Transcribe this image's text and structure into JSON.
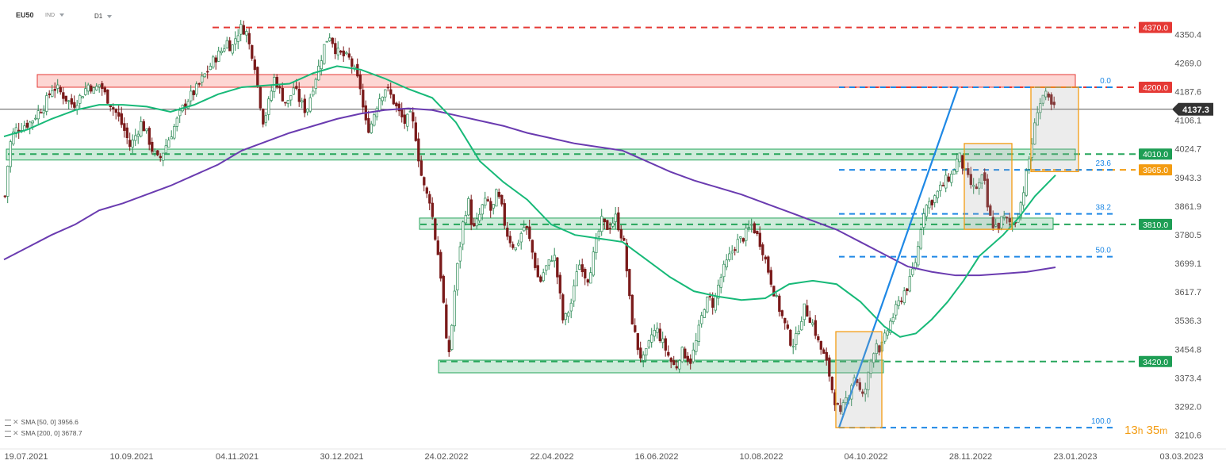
{
  "header": {
    "symbol": "EU50",
    "type": "IND",
    "interval": "D1"
  },
  "legend": [
    {
      "label": "SMA [50, 0]",
      "value": "3956.6"
    },
    {
      "label": "SMA [200, 0]",
      "value": "3678.7"
    }
  ],
  "timer": {
    "hours": "13",
    "h_unit": "h",
    "minutes": "35",
    "m_unit": "m"
  },
  "colors": {
    "up": "#2e8b57",
    "down": "#7a1a1a",
    "sma50": "#17b978",
    "sma200": "#6a3bb0",
    "resistance": "#e53935",
    "support": "#26a65b",
    "fib": "#1e88e5",
    "orange": "#f39c12"
  },
  "chart_data": {
    "type": "candlestick",
    "y_range": [
      3185,
      4430
    ],
    "y_ticks": [
      "4350.4",
      "4269.0",
      "4187.6",
      "4106.1",
      "4024.7",
      "3943.3",
      "3861.9",
      "3780.5",
      "3699.1",
      "3617.7",
      "3536.3",
      "3454.8",
      "3373.4",
      "3292.0",
      "3210.6"
    ],
    "x_labels": [
      "19.07.2021",
      "10.09.2021",
      "04.11.2021",
      "30.12.2021",
      "24.02.2022",
      "22.04.2022",
      "16.06.2022",
      "10.08.2022",
      "04.10.2022",
      "28.11.2022",
      "23.01.2023",
      "03.03.2023"
    ],
    "last_price": "4137.3",
    "levels": [
      {
        "label": "4370.0",
        "value": 4370.0,
        "kind": "resistance"
      },
      {
        "label": "4200.0",
        "value": 4200.0,
        "kind": "resistance"
      },
      {
        "label": "4010.0",
        "value": 4010.0,
        "kind": "support"
      },
      {
        "label": "3965.0",
        "value": 3965.0,
        "kind": "orange"
      },
      {
        "label": "3810.0",
        "value": 3810.0,
        "kind": "support"
      },
      {
        "label": "3420.0",
        "value": 3420.0,
        "kind": "support"
      }
    ],
    "fib_levels": [
      {
        "label": "0.0",
        "value": 4200
      },
      {
        "label": "23.6",
        "value": 3965
      },
      {
        "label": "38.2",
        "value": 3840
      },
      {
        "label": "50.0",
        "value": 3718
      },
      {
        "label": "100.0",
        "value": 3232
      }
    ],
    "zones": [
      {
        "from": 4200,
        "to": 4236,
        "kind": "resistance"
      },
      {
        "from": 3993,
        "to": 4024,
        "kind": "support"
      },
      {
        "from": 3796,
        "to": 3828,
        "kind": "support"
      },
      {
        "from": 3388,
        "to": 3424,
        "kind": "support"
      }
    ],
    "close_path": [
      [
        0,
        3890
      ],
      [
        4,
        3990
      ],
      [
        8,
        4060
      ],
      [
        14,
        4080
      ],
      [
        22,
        4090
      ],
      [
        32,
        4100
      ],
      [
        42,
        4130
      ],
      [
        50,
        4150
      ],
      [
        60,
        4200
      ],
      [
        66,
        4195
      ],
      [
        72,
        4180
      ],
      [
        80,
        4160
      ],
      [
        86,
        4150
      ],
      [
        94,
        4170
      ],
      [
        100,
        4190
      ],
      [
        106,
        4210
      ],
      [
        112,
        4190
      ],
      [
        120,
        4210
      ],
      [
        126,
        4180
      ],
      [
        134,
        4150
      ],
      [
        142,
        4120
      ],
      [
        150,
        4080
      ],
      [
        158,
        4030
      ],
      [
        166,
        4070
      ],
      [
        172,
        4100
      ],
      [
        180,
        4060
      ],
      [
        186,
        4020
      ],
      [
        194,
        3990
      ],
      [
        200,
        4020
      ],
      [
        206,
        4050
      ],
      [
        212,
        4080
      ],
      [
        218,
        4110
      ],
      [
        224,
        4140
      ],
      [
        232,
        4170
      ],
      [
        240,
        4190
      ],
      [
        248,
        4220
      ],
      [
        256,
        4250
      ],
      [
        264,
        4280
      ],
      [
        272,
        4300
      ],
      [
        280,
        4330
      ],
      [
        286,
        4310
      ],
      [
        292,
        4350
      ],
      [
        298,
        4370
      ],
      [
        304,
        4360
      ],
      [
        308,
        4320
      ],
      [
        314,
        4280
      ],
      [
        320,
        4180
      ],
      [
        326,
        4100
      ],
      [
        332,
        4150
      ],
      [
        340,
        4230
      ],
      [
        348,
        4180
      ],
      [
        356,
        4150
      ],
      [
        364,
        4200
      ],
      [
        372,
        4160
      ],
      [
        380,
        4130
      ],
      [
        388,
        4200
      ],
      [
        396,
        4260
      ],
      [
        404,
        4330
      ],
      [
        410,
        4350
      ],
      [
        418,
        4300
      ],
      [
        426,
        4290
      ],
      [
        434,
        4280
      ],
      [
        440,
        4250
      ],
      [
        448,
        4200
      ],
      [
        454,
        4100
      ],
      [
        460,
        4080
      ],
      [
        466,
        4130
      ],
      [
        472,
        4170
      ],
      [
        480,
        4200
      ],
      [
        488,
        4170
      ],
      [
        496,
        4130
      ],
      [
        504,
        4100
      ],
      [
        512,
        4120
      ],
      [
        518,
        4060
      ],
      [
        524,
        3960
      ],
      [
        530,
        3900
      ],
      [
        536,
        3880
      ],
      [
        542,
        3780
      ],
      [
        548,
        3700
      ],
      [
        554,
        3560
      ],
      [
        558,
        3420
      ],
      [
        562,
        3480
      ],
      [
        566,
        3600
      ],
      [
        572,
        3720
      ],
      [
        578,
        3820
      ],
      [
        584,
        3880
      ],
      [
        590,
        3790
      ],
      [
        596,
        3820
      ],
      [
        602,
        3860
      ],
      [
        608,
        3880
      ],
      [
        614,
        3840
      ],
      [
        620,
        3900
      ],
      [
        626,
        3860
      ],
      [
        632,
        3790
      ],
      [
        638,
        3760
      ],
      [
        644,
        3740
      ],
      [
        650,
        3780
      ],
      [
        656,
        3810
      ],
      [
        662,
        3760
      ],
      [
        668,
        3700
      ],
      [
        674,
        3640
      ],
      [
        680,
        3680
      ],
      [
        686,
        3700
      ],
      [
        692,
        3730
      ],
      [
        698,
        3640
      ],
      [
        704,
        3530
      ],
      [
        710,
        3560
      ],
      [
        716,
        3600
      ],
      [
        722,
        3700
      ],
      [
        728,
        3690
      ],
      [
        734,
        3650
      ],
      [
        740,
        3700
      ],
      [
        746,
        3760
      ],
      [
        752,
        3820
      ],
      [
        758,
        3800
      ],
      [
        764,
        3810
      ],
      [
        770,
        3830
      ],
      [
        776,
        3790
      ],
      [
        782,
        3740
      ],
      [
        786,
        3620
      ],
      [
        792,
        3520
      ],
      [
        798,
        3460
      ],
      [
        804,
        3420
      ],
      [
        810,
        3450
      ],
      [
        816,
        3500
      ],
      [
        822,
        3510
      ],
      [
        828,
        3480
      ],
      [
        834,
        3450
      ],
      [
        840,
        3420
      ],
      [
        846,
        3400
      ],
      [
        852,
        3450
      ],
      [
        858,
        3440
      ],
      [
        864,
        3420
      ],
      [
        870,
        3460
      ],
      [
        876,
        3520
      ],
      [
        882,
        3580
      ],
      [
        888,
        3600
      ],
      [
        894,
        3580
      ],
      [
        900,
        3640
      ],
      [
        906,
        3680
      ],
      [
        912,
        3710
      ],
      [
        918,
        3740
      ],
      [
        924,
        3760
      ],
      [
        930,
        3770
      ],
      [
        936,
        3790
      ],
      [
        942,
        3810
      ],
      [
        948,
        3780
      ],
      [
        954,
        3750
      ],
      [
        960,
        3700
      ],
      [
        966,
        3650
      ],
      [
        972,
        3600
      ],
      [
        978,
        3560
      ],
      [
        984,
        3520
      ],
      [
        990,
        3480
      ],
      [
        996,
        3470
      ],
      [
        1002,
        3530
      ],
      [
        1008,
        3570
      ],
      [
        1014,
        3550
      ],
      [
        1020,
        3520
      ],
      [
        1026,
        3470
      ],
      [
        1032,
        3440
      ],
      [
        1038,
        3400
      ],
      [
        1044,
        3330
      ],
      [
        1048,
        3300
      ],
      [
        1054,
        3260
      ],
      [
        1058,
        3300
      ],
      [
        1064,
        3330
      ],
      [
        1070,
        3380
      ],
      [
        1076,
        3360
      ],
      [
        1080,
        3310
      ],
      [
        1086,
        3350
      ],
      [
        1092,
        3420
      ],
      [
        1098,
        3480
      ],
      [
        1104,
        3450
      ],
      [
        1110,
        3490
      ],
      [
        1116,
        3530
      ],
      [
        1122,
        3560
      ],
      [
        1128,
        3590
      ],
      [
        1134,
        3620
      ],
      [
        1140,
        3640
      ],
      [
        1146,
        3690
      ],
      [
        1150,
        3720
      ],
      [
        1154,
        3790
      ],
      [
        1158,
        3850
      ],
      [
        1164,
        3870
      ],
      [
        1170,
        3880
      ],
      [
        1176,
        3900
      ],
      [
        1182,
        3920
      ],
      [
        1188,
        3940
      ],
      [
        1194,
        3950
      ],
      [
        1200,
        3990
      ],
      [
        1204,
        4000
      ],
      [
        1210,
        3960
      ],
      [
        1216,
        3930
      ],
      [
        1222,
        3910
      ],
      [
        1228,
        3920
      ],
      [
        1234,
        3950
      ],
      [
        1240,
        3840
      ],
      [
        1246,
        3810
      ],
      [
        1252,
        3800
      ],
      [
        1258,
        3830
      ],
      [
        1264,
        3820
      ],
      [
        1270,
        3810
      ],
      [
        1276,
        3830
      ],
      [
        1282,
        3880
      ],
      [
        1288,
        3950
      ],
      [
        1294,
        4030
      ],
      [
        1298,
        4080
      ],
      [
        1302,
        4140
      ],
      [
        1306,
        4160
      ],
      [
        1310,
        4180
      ],
      [
        1314,
        4170
      ],
      [
        1318,
        4150
      ],
      [
        1322,
        4140
      ],
      [
        1326,
        4137
      ]
    ],
    "sma50_path": [
      [
        0,
        4060
      ],
      [
        30,
        4080
      ],
      [
        60,
        4110
      ],
      [
        90,
        4135
      ],
      [
        120,
        4150
      ],
      [
        150,
        4150
      ],
      [
        180,
        4145
      ],
      [
        210,
        4130
      ],
      [
        240,
        4150
      ],
      [
        270,
        4180
      ],
      [
        300,
        4200
      ],
      [
        330,
        4205
      ],
      [
        360,
        4210
      ],
      [
        390,
        4240
      ],
      [
        420,
        4260
      ],
      [
        450,
        4250
      ],
      [
        480,
        4225
      ],
      [
        510,
        4195
      ],
      [
        540,
        4170
      ],
      [
        570,
        4100
      ],
      [
        600,
        3990
      ],
      [
        630,
        3930
      ],
      [
        660,
        3880
      ],
      [
        690,
        3810
      ],
      [
        720,
        3780
      ],
      [
        750,
        3770
      ],
      [
        780,
        3760
      ],
      [
        810,
        3710
      ],
      [
        840,
        3660
      ],
      [
        870,
        3620
      ],
      [
        900,
        3605
      ],
      [
        930,
        3595
      ],
      [
        960,
        3600
      ],
      [
        990,
        3640
      ],
      [
        1020,
        3650
      ],
      [
        1050,
        3640
      ],
      [
        1080,
        3590
      ],
      [
        1110,
        3520
      ],
      [
        1130,
        3490
      ],
      [
        1150,
        3500
      ],
      [
        1170,
        3540
      ],
      [
        1190,
        3590
      ],
      [
        1210,
        3650
      ],
      [
        1230,
        3720
      ],
      [
        1260,
        3780
      ],
      [
        1280,
        3830
      ],
      [
        1300,
        3890
      ],
      [
        1326,
        3950
      ]
    ],
    "sma200_path": [
      [
        0,
        3710
      ],
      [
        30,
        3745
      ],
      [
        60,
        3780
      ],
      [
        90,
        3810
      ],
      [
        120,
        3850
      ],
      [
        150,
        3870
      ],
      [
        180,
        3895
      ],
      [
        210,
        3920
      ],
      [
        240,
        3950
      ],
      [
        270,
        3980
      ],
      [
        300,
        4020
      ],
      [
        330,
        4045
      ],
      [
        360,
        4070
      ],
      [
        390,
        4090
      ],
      [
        420,
        4110
      ],
      [
        450,
        4125
      ],
      [
        480,
        4135
      ],
      [
        510,
        4140
      ],
      [
        540,
        4135
      ],
      [
        570,
        4120
      ],
      [
        600,
        4105
      ],
      [
        630,
        4090
      ],
      [
        660,
        4070
      ],
      [
        690,
        4055
      ],
      [
        720,
        4040
      ],
      [
        750,
        4030
      ],
      [
        780,
        4020
      ],
      [
        810,
        3990
      ],
      [
        840,
        3960
      ],
      [
        870,
        3935
      ],
      [
        900,
        3915
      ],
      [
        930,
        3895
      ],
      [
        960,
        3870
      ],
      [
        990,
        3845
      ],
      [
        1020,
        3820
      ],
      [
        1050,
        3795
      ],
      [
        1080,
        3760
      ],
      [
        1110,
        3725
      ],
      [
        1140,
        3690
      ],
      [
        1170,
        3675
      ],
      [
        1200,
        3665
      ],
      [
        1230,
        3665
      ],
      [
        1260,
        3670
      ],
      [
        1290,
        3675
      ],
      [
        1326,
        3688
      ]
    ]
  }
}
